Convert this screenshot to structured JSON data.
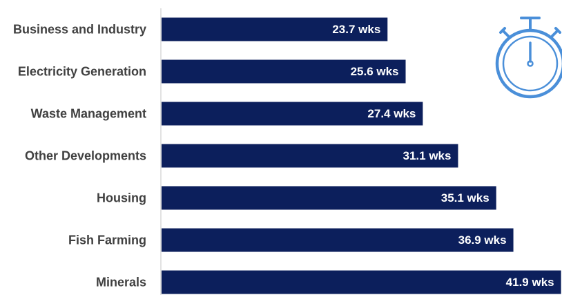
{
  "colors": {
    "bar": "#0c1f5c",
    "axis": "#d9d9d9",
    "icon": "#4a8fd9",
    "category_text": "#404040",
    "value_text": "#ffffff"
  },
  "icon": {
    "name": "stopwatch-icon"
  },
  "chart_data": {
    "type": "bar",
    "orientation": "horizontal",
    "categories": [
      "Business and Industry",
      "Electricity Generation",
      "Waste Management",
      "Other Developments",
      "Housing",
      "Fish Farming",
      "Minerals"
    ],
    "values": [
      23.7,
      25.6,
      27.4,
      31.1,
      35.1,
      36.9,
      41.9
    ],
    "value_labels": [
      "23.7 wks",
      "25.6 wks",
      "27.4 wks",
      "31.1 wks",
      "35.1 wks",
      "36.9 wks",
      "41.9 wks"
    ],
    "unit": "wks",
    "xlim": [
      0,
      42
    ],
    "title": "",
    "xlabel": "",
    "ylabel": "",
    "grid": false,
    "legend": "none"
  }
}
